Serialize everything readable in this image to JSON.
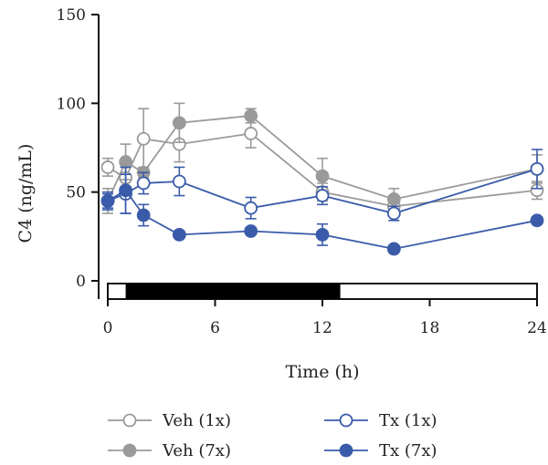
{
  "chart_data": {
    "type": "line",
    "title": "",
    "xlabel": "Time (h)",
    "ylabel": "C4 (ng/mL)",
    "xlim": [
      0,
      24
    ],
    "ylim": [
      -8,
      150
    ],
    "xticks": [
      "0",
      "6",
      "12",
      "18",
      "24"
    ],
    "yticks": [
      "0",
      "50",
      "100",
      "150"
    ],
    "grid": false,
    "legend_position": "bottom",
    "light_dark_bar": {
      "light_periods": [
        [
          0,
          1
        ],
        [
          13,
          24
        ]
      ],
      "dark_periods": [
        [
          1,
          13
        ]
      ]
    },
    "series": [
      {
        "name": "Veh (1x)",
        "color": "#9a9a9a",
        "marker": "open-circle",
        "x": [
          0,
          1,
          2,
          4,
          8,
          12,
          16,
          24
        ],
        "y": [
          64,
          58,
          80,
          77,
          83,
          50,
          42,
          51
        ],
        "err": [
          5,
          6,
          17,
          10,
          8,
          5,
          4,
          5
        ]
      },
      {
        "name": "Veh (7x)",
        "color": "#9a9a9a",
        "marker": "filled-circle",
        "x": [
          0,
          1,
          2,
          4,
          8,
          12,
          16,
          24
        ],
        "y": [
          45,
          67,
          61,
          89,
          93,
          59,
          46,
          63
        ],
        "err": [
          7,
          10,
          3,
          11,
          4,
          10,
          6,
          8
        ]
      },
      {
        "name": "Tx (1x)",
        "color": "#3a5ba9",
        "marker": "open-circle",
        "x": [
          0,
          1,
          2,
          4,
          8,
          12,
          16,
          24
        ],
        "y": [
          45,
          49,
          55,
          56,
          41,
          48,
          38,
          63
        ],
        "err": [
          5,
          11,
          6,
          8,
          6,
          5,
          4,
          11
        ]
      },
      {
        "name": "Tx (7x)",
        "color": "#3a5ba9",
        "marker": "filled-circle",
        "x": [
          0,
          1,
          2,
          4,
          8,
          12,
          16,
          24
        ],
        "y": [
          45,
          51,
          37,
          26,
          28,
          26,
          18,
          34
        ],
        "err": [
          4,
          13,
          6,
          2,
          2,
          6,
          2,
          2
        ]
      }
    ]
  }
}
